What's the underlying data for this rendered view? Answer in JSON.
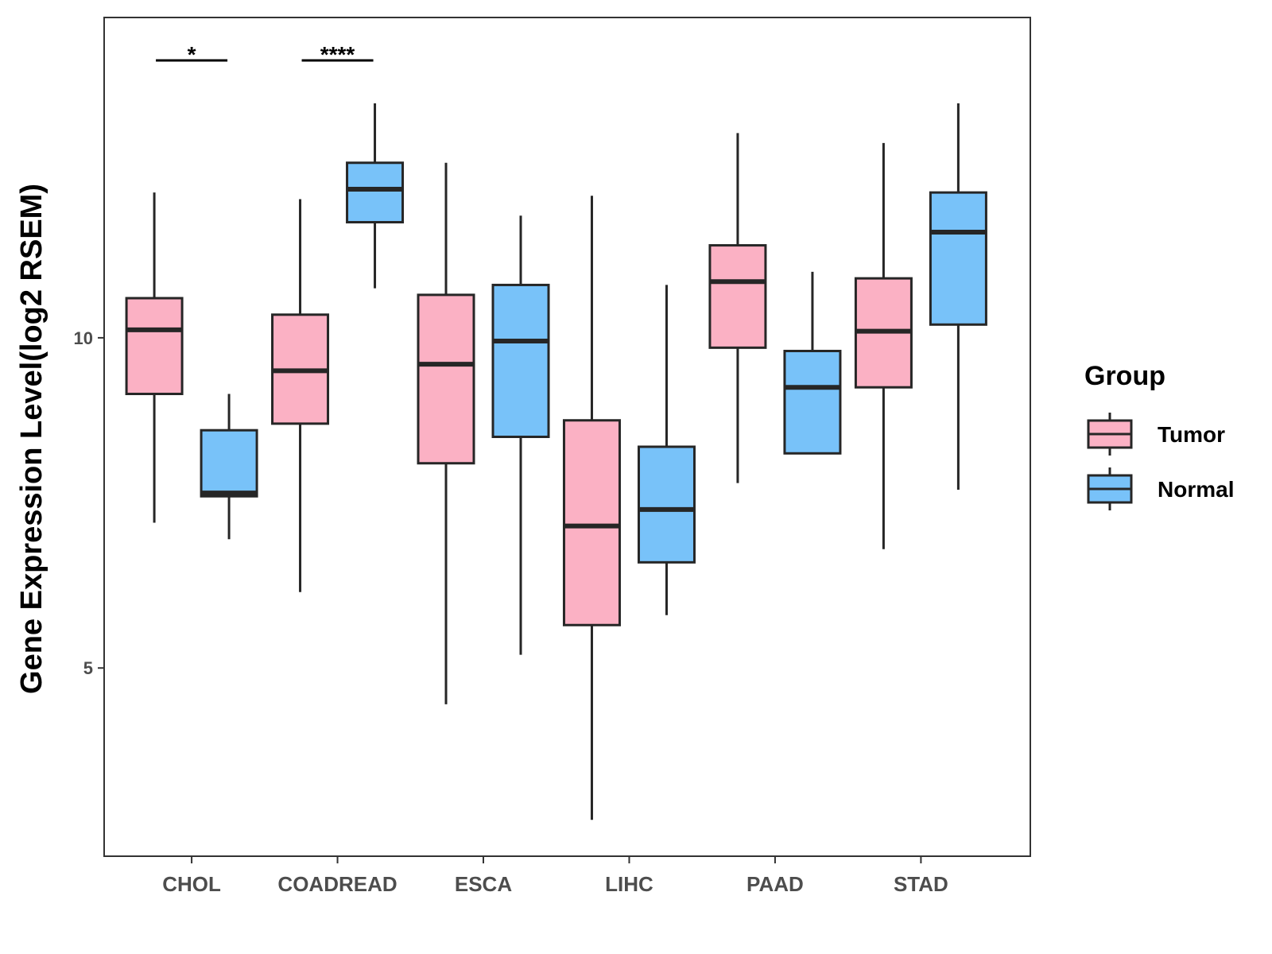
{
  "chart_data": {
    "type": "boxplot",
    "title": "",
    "xlabel": "",
    "ylabel": "Gene Expression Level(log2 RSEM)",
    "ylim": [
      2.15,
      14.85
    ],
    "yticks": [
      5,
      10
    ],
    "ytick_labels": [
      "5",
      "10"
    ],
    "categories": [
      "CHOL",
      "COADREAD",
      "ESCA",
      "LIHC",
      "PAAD",
      "STAD"
    ],
    "legend": {
      "title": "Group",
      "position": "right",
      "entries": [
        {
          "name": "Tumor",
          "color": "#fbb1c4"
        },
        {
          "name": "Normal",
          "color": "#78c2f9"
        }
      ]
    },
    "series": [
      {
        "name": "Tumor",
        "color": "#fbb1c4",
        "boxes": [
          {
            "min": 7.2,
            "q1": 9.15,
            "median": 10.12,
            "q3": 10.6,
            "max": 12.2
          },
          {
            "min": 6.15,
            "q1": 8.7,
            "median": 9.5,
            "q3": 10.35,
            "max": 12.1
          },
          {
            "min": 4.45,
            "q1": 8.1,
            "median": 9.6,
            "q3": 10.65,
            "max": 12.65
          },
          {
            "min": 2.7,
            "q1": 5.65,
            "median": 7.15,
            "q3": 8.75,
            "max": 12.15
          },
          {
            "min": 7.8,
            "q1": 9.85,
            "median": 10.85,
            "q3": 11.4,
            "max": 13.1
          },
          {
            "min": 6.8,
            "q1": 9.25,
            "median": 10.1,
            "q3": 10.9,
            "max": 12.95
          }
        ]
      },
      {
        "name": "Normal",
        "color": "#78c2f9",
        "boxes": [
          {
            "min": 6.95,
            "q1": 7.6,
            "median": 7.65,
            "q3": 8.6,
            "max": 9.15
          },
          {
            "min": 10.75,
            "q1": 11.75,
            "median": 12.25,
            "q3": 12.65,
            "max": 13.55
          },
          {
            "min": 5.2,
            "q1": 8.5,
            "median": 9.95,
            "q3": 10.8,
            "max": 11.85
          },
          {
            "min": 5.8,
            "q1": 6.6,
            "median": 7.4,
            "q3": 8.35,
            "max": 10.8
          },
          {
            "min": null,
            "q1": 8.25,
            "median": 9.25,
            "q3": 9.8,
            "max": 11.0
          },
          {
            "min": 7.7,
            "q1": 10.2,
            "median": 11.6,
            "q3": 12.2,
            "max": 13.55
          }
        ]
      }
    ],
    "annotations": [
      {
        "category": "CHOL",
        "label": "*",
        "y": 14.2
      },
      {
        "category": "COADREAD",
        "label": "****",
        "y": 14.2
      }
    ]
  }
}
